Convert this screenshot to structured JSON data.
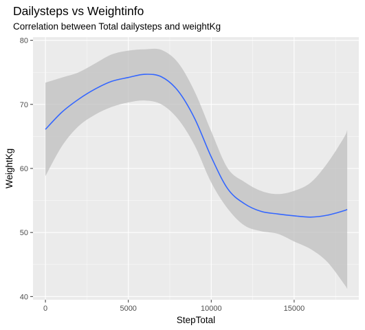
{
  "chart_data": {
    "type": "line",
    "title": "Dailysteps vs Weightinfo",
    "subtitle": "Correlation between Total dailysteps and weightKg",
    "xlabel": "StepTotal",
    "ylabel": "WeightKg",
    "xlim": [
      -750,
      18900
    ],
    "ylim": [
      39.5,
      80.5
    ],
    "x_ticks": [
      0,
      5000,
      10000,
      15000
    ],
    "y_ticks": [
      40,
      50,
      60,
      70,
      80
    ],
    "grid": true,
    "legend": "none",
    "colors": {
      "panel": "#ebebeb",
      "grid_major": "#ffffff",
      "line": "#3366ff",
      "ribbon": "#bfbfbf"
    },
    "series": [
      {
        "x": [
          0,
          1000,
          2000,
          3000,
          4000,
          5000,
          6000,
          7000,
          8000,
          9000,
          10000,
          11000,
          12000,
          13000,
          14000,
          15000,
          16000,
          17000,
          18000,
          18200
        ],
        "y": [
          66.1,
          68.8,
          70.8,
          72.4,
          73.6,
          74.2,
          74.7,
          74.3,
          72.1,
          67.8,
          61.8,
          56.8,
          54.5,
          53.3,
          52.9,
          52.6,
          52.4,
          52.7,
          53.4,
          53.6
        ],
        "ymin": [
          58.8,
          63.5,
          66.6,
          68.4,
          69.6,
          70.3,
          70.6,
          70.0,
          67.7,
          63.6,
          57.8,
          53.7,
          51.1,
          50.2,
          49.8,
          48.6,
          47.4,
          45.4,
          42.0,
          41.2
        ],
        "ymax": [
          73.4,
          74.2,
          75.0,
          76.4,
          77.8,
          78.4,
          78.6,
          78.5,
          76.5,
          72.0,
          65.8,
          60.0,
          57.9,
          56.5,
          56.0,
          56.5,
          57.8,
          60.8,
          64.8,
          66.0
        ]
      }
    ]
  }
}
